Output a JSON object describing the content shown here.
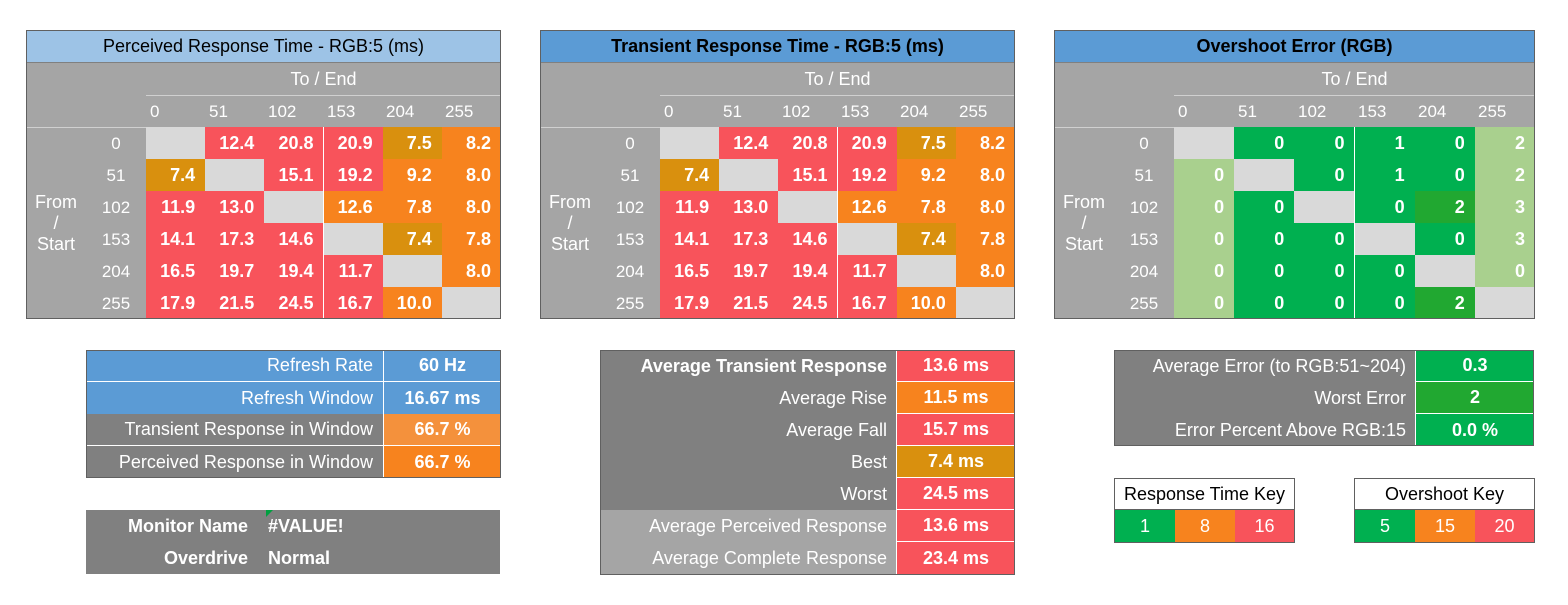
{
  "axis": {
    "to_end": "To / End",
    "from_start_lines": [
      "From",
      "/",
      "Start"
    ],
    "ticks": [
      "0",
      "51",
      "102",
      "153",
      "204",
      "255"
    ]
  },
  "colors": {
    "title_light_blue": "#9dc3e6",
    "title_blue": "#5b9bd5",
    "red": "#f8535b",
    "orange": "#f7831e",
    "amber": "#d9900e",
    "green": "#00b050",
    "green_mid": "#21a831",
    "light_green": "#a9d08e",
    "blank": "#d9d9d9",
    "grey": "#a5a5a5",
    "dark_grey": "#808080"
  },
  "perceived_matrix": {
    "title": "Perceived Response Time - RGB:5 (ms)",
    "rows": [
      [
        "",
        "12.4",
        "20.8",
        "20.9",
        "7.5",
        "8.2"
      ],
      [
        "7.4",
        "",
        "15.1",
        "19.2",
        "9.2",
        "8.0"
      ],
      [
        "11.9",
        "13.0",
        "",
        "12.6",
        "7.8",
        "8.0"
      ],
      [
        "14.1",
        "17.3",
        "14.6",
        "",
        "7.4",
        "7.8"
      ],
      [
        "16.5",
        "19.7",
        "19.4",
        "11.7",
        "",
        "8.0"
      ],
      [
        "17.9",
        "21.5",
        "24.5",
        "16.7",
        "10.0",
        ""
      ]
    ]
  },
  "transient_matrix": {
    "title": "Transient Response Time - RGB:5 (ms)",
    "rows": [
      [
        "",
        "12.4",
        "20.8",
        "20.9",
        "7.5",
        "8.2"
      ],
      [
        "7.4",
        "",
        "15.1",
        "19.2",
        "9.2",
        "8.0"
      ],
      [
        "11.9",
        "13.0",
        "",
        "12.6",
        "7.8",
        "8.0"
      ],
      [
        "14.1",
        "17.3",
        "14.6",
        "",
        "7.4",
        "7.8"
      ],
      [
        "16.5",
        "19.7",
        "19.4",
        "11.7",
        "",
        "8.0"
      ],
      [
        "17.9",
        "21.5",
        "24.5",
        "16.7",
        "10.0",
        ""
      ]
    ]
  },
  "overshoot_matrix": {
    "title": "Overshoot Error (RGB)",
    "rows": [
      [
        "",
        "0",
        "0",
        "1",
        "0",
        "2"
      ],
      [
        "0",
        "",
        "0",
        "1",
        "0",
        "2"
      ],
      [
        "0",
        "0",
        "",
        "0",
        "2",
        "3"
      ],
      [
        "0",
        "0",
        "0",
        "",
        "0",
        "3"
      ],
      [
        "0",
        "0",
        "0",
        "0",
        "",
        "0"
      ],
      [
        "0",
        "0",
        "0",
        "0",
        "2",
        ""
      ]
    ]
  },
  "refresh_table": {
    "rows": [
      {
        "label": "Refresh Rate",
        "value": "60 Hz"
      },
      {
        "label": "Refresh Window",
        "value": "16.67 ms"
      },
      {
        "label": "Transient Response in Window",
        "value": "66.7 %"
      },
      {
        "label": "Perceived Response in Window",
        "value": "66.7 %"
      }
    ]
  },
  "monitor": {
    "name_label": "Monitor Name",
    "name_value": "#VALUE!",
    "overdrive_label": "Overdrive",
    "overdrive_value": "Normal"
  },
  "averages_table": {
    "rows": [
      {
        "label": "Average Transient Response",
        "value": "13.6 ms"
      },
      {
        "label": "Average Rise",
        "value": "11.5 ms"
      },
      {
        "label": "Average Fall",
        "value": "15.7 ms"
      },
      {
        "label": "Best",
        "value": "7.4 ms"
      },
      {
        "label": "Worst",
        "value": "24.5 ms"
      },
      {
        "label": "Average Perceived Response",
        "value": "13.6 ms"
      },
      {
        "label": "Average Complete Response",
        "value": "23.4 ms"
      }
    ]
  },
  "error_table": {
    "rows": [
      {
        "label": "Average Error (to RGB:51~204)",
        "value": "0.3"
      },
      {
        "label": "Worst Error",
        "value": "2"
      },
      {
        "label": "Error Percent Above RGB:15",
        "value": "0.0 %"
      }
    ]
  },
  "response_key": {
    "title": "Response Time Key",
    "values": [
      "1",
      "8",
      "16"
    ]
  },
  "overshoot_key": {
    "title": "Overshoot Key",
    "values": [
      "5",
      "15",
      "20"
    ]
  }
}
